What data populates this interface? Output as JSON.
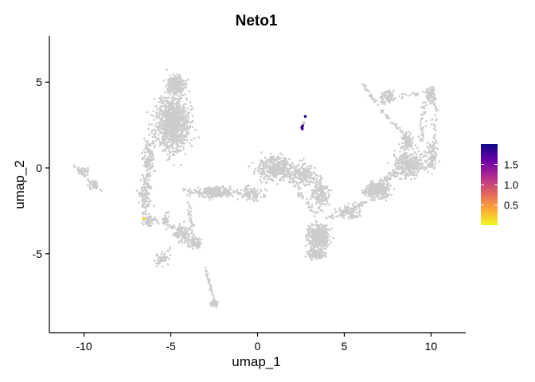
{
  "chart_data": {
    "type": "scatter",
    "title": "Neto1",
    "xlabel": "umap_1",
    "ylabel": "umap_2",
    "xlim": [
      -12.0,
      12.0
    ],
    "ylim": [
      -9.6,
      7.7
    ],
    "x_ticks": [
      -10,
      -5,
      0,
      5,
      10
    ],
    "x_tick_labels": [
      "-10",
      "-5",
      "0",
      "5",
      "10"
    ],
    "y_ticks": [
      -5,
      0,
      5
    ],
    "y_tick_labels": [
      "-5",
      "0",
      "5"
    ],
    "grid": false,
    "background_point_color": "#CCCCCC",
    "colorscale": [
      "#F0F921",
      "#FCA636",
      "#E16462",
      "#B12A90",
      "#6A00A8",
      "#0D0887"
    ],
    "color_range": [
      0.0,
      2.0
    ],
    "legend": {
      "placement": "right",
      "ticks": [
        0.5,
        1.0,
        1.5
      ],
      "tick_labels": [
        "0.5",
        "1.0",
        "1.5"
      ]
    },
    "clusters": [
      {
        "cx": -4.9,
        "cy": 2.6,
        "sx": 1.0,
        "sy": 1.6,
        "n": 950
      },
      {
        "cx": -4.7,
        "cy": 4.8,
        "sx": 0.55,
        "sy": 0.6,
        "n": 220
      },
      {
        "cx": -6.3,
        "cy": 0.6,
        "sx": 0.3,
        "sy": 0.9,
        "n": 110
      },
      {
        "cx": -6.5,
        "cy": -1.5,
        "sx": 0.35,
        "sy": 1.0,
        "n": 90
      },
      {
        "cx": -6.3,
        "cy": -3.1,
        "sx": 0.3,
        "sy": 0.3,
        "n": 60
      },
      {
        "cx": -4.3,
        "cy": -3.8,
        "sx": 0.6,
        "sy": 0.5,
        "n": 120
      },
      {
        "cx": -3.6,
        "cy": -4.4,
        "sx": 0.4,
        "sy": 0.35,
        "n": 80
      },
      {
        "cx": -5.3,
        "cy": -3.0,
        "sx": 0.2,
        "sy": 0.5,
        "n": 30
      },
      {
        "cx": -5.5,
        "cy": -5.3,
        "sx": 0.35,
        "sy": 0.35,
        "n": 40
      },
      {
        "cx": -2.5,
        "cy": -7.9,
        "sx": 0.3,
        "sy": 0.18,
        "n": 40
      },
      {
        "cx": -2.5,
        "cy": -1.4,
        "sx": 1.0,
        "sy": 0.35,
        "n": 220
      },
      {
        "cx": -0.3,
        "cy": -1.5,
        "sx": 0.7,
        "sy": 0.45,
        "n": 110
      },
      {
        "cx": 1.1,
        "cy": 0.0,
        "sx": 1.0,
        "sy": 0.7,
        "n": 420
      },
      {
        "cx": 2.7,
        "cy": -0.4,
        "sx": 0.7,
        "sy": 0.6,
        "n": 160
      },
      {
        "cx": 3.6,
        "cy": -1.5,
        "sx": 0.5,
        "sy": 0.8,
        "n": 160
      },
      {
        "cx": 3.5,
        "cy": -4.0,
        "sx": 0.55,
        "sy": 0.7,
        "n": 420
      },
      {
        "cx": 3.4,
        "cy": -5.0,
        "sx": 0.5,
        "sy": 0.3,
        "n": 140
      },
      {
        "cx": 5.3,
        "cy": -2.6,
        "sx": 0.6,
        "sy": 0.4,
        "n": 80
      },
      {
        "cx": 6.9,
        "cy": -1.3,
        "sx": 0.7,
        "sy": 0.45,
        "n": 280
      },
      {
        "cx": 8.7,
        "cy": 0.2,
        "sx": 0.8,
        "sy": 0.7,
        "n": 320
      },
      {
        "cx": 8.6,
        "cy": 1.5,
        "sx": 0.35,
        "sy": 0.6,
        "n": 90
      },
      {
        "cx": 7.5,
        "cy": 4.2,
        "sx": 0.4,
        "sy": 0.35,
        "n": 60
      },
      {
        "cx": 10.0,
        "cy": 4.2,
        "sx": 0.3,
        "sy": 0.5,
        "n": 70
      },
      {
        "cx": 10.0,
        "cy": 0.6,
        "sx": 0.4,
        "sy": 0.8,
        "n": 90
      },
      {
        "cx": -10.0,
        "cy": -0.2,
        "sx": 0.3,
        "sy": 0.2,
        "n": 25
      },
      {
        "cx": -9.5,
        "cy": -1.0,
        "sx": 0.3,
        "sy": 0.3,
        "n": 30
      },
      {
        "cx": 2.65,
        "cy": 2.6,
        "sx": 0.05,
        "sy": 0.15,
        "n": 6
      }
    ],
    "paths": [
      {
        "from": [
          -10.6,
          0.2
        ],
        "to": [
          -9.0,
          -1.4
        ],
        "n": 30,
        "jitter": 0.12
      },
      {
        "from": [
          -6.3,
          0.0
        ],
        "to": [
          -6.5,
          -2.8
        ],
        "n": 45,
        "jitter": 0.2
      },
      {
        "from": [
          -5.9,
          -5.8
        ],
        "to": [
          -5.0,
          -4.6
        ],
        "n": 20,
        "jitter": 0.1
      },
      {
        "from": [
          -3.0,
          -5.8
        ],
        "to": [
          -2.4,
          -8.0
        ],
        "n": 40,
        "jitter": 0.1
      },
      {
        "from": [
          -4.0,
          -1.6
        ],
        "to": [
          -3.7,
          -4.2
        ],
        "n": 30,
        "jitter": 0.15
      },
      {
        "from": [
          -4.4,
          -1.3
        ],
        "to": [
          -0.8,
          -1.5
        ],
        "n": 50,
        "jitter": 0.2
      },
      {
        "from": [
          -6.0,
          -3.0
        ],
        "to": [
          -4.3,
          -3.6
        ],
        "n": 30,
        "jitter": 0.18
      },
      {
        "from": [
          4.0,
          -3.0
        ],
        "to": [
          6.2,
          -2.0
        ],
        "n": 60,
        "jitter": 0.22
      },
      {
        "from": [
          6.2,
          -1.6
        ],
        "to": [
          8.0,
          -0.2
        ],
        "n": 80,
        "jitter": 0.28
      },
      {
        "from": [
          8.6,
          1.8
        ],
        "to": [
          7.2,
          3.3
        ],
        "n": 30,
        "jitter": 0.14
      },
      {
        "from": [
          7.2,
          3.3
        ],
        "to": [
          6.1,
          4.9
        ],
        "n": 30,
        "jitter": 0.12
      },
      {
        "from": [
          7.0,
          3.8
        ],
        "to": [
          10.2,
          4.6
        ],
        "n": 40,
        "jitter": 0.2
      },
      {
        "from": [
          9.6,
          3.9
        ],
        "to": [
          9.5,
          1.5
        ],
        "n": 35,
        "jitter": 0.2
      },
      {
        "from": [
          10.3,
          4.0
        ],
        "to": [
          10.1,
          -0.2
        ],
        "n": 40,
        "jitter": 0.2
      },
      {
        "from": [
          1.8,
          -0.5
        ],
        "to": [
          3.4,
          -2.8
        ],
        "n": 40,
        "jitter": 0.25
      }
    ],
    "expressing_points": [
      {
        "x": 2.75,
        "y": 3.0,
        "value": 1.95
      },
      {
        "x": 2.55,
        "y": 2.35,
        "value": 1.9
      },
      {
        "x": 2.6,
        "y": 2.45,
        "value": 1.85
      },
      {
        "x": 2.58,
        "y": 2.28,
        "value": 1.8
      },
      {
        "x": -6.55,
        "y": -2.95,
        "value": 0.15
      }
    ]
  }
}
